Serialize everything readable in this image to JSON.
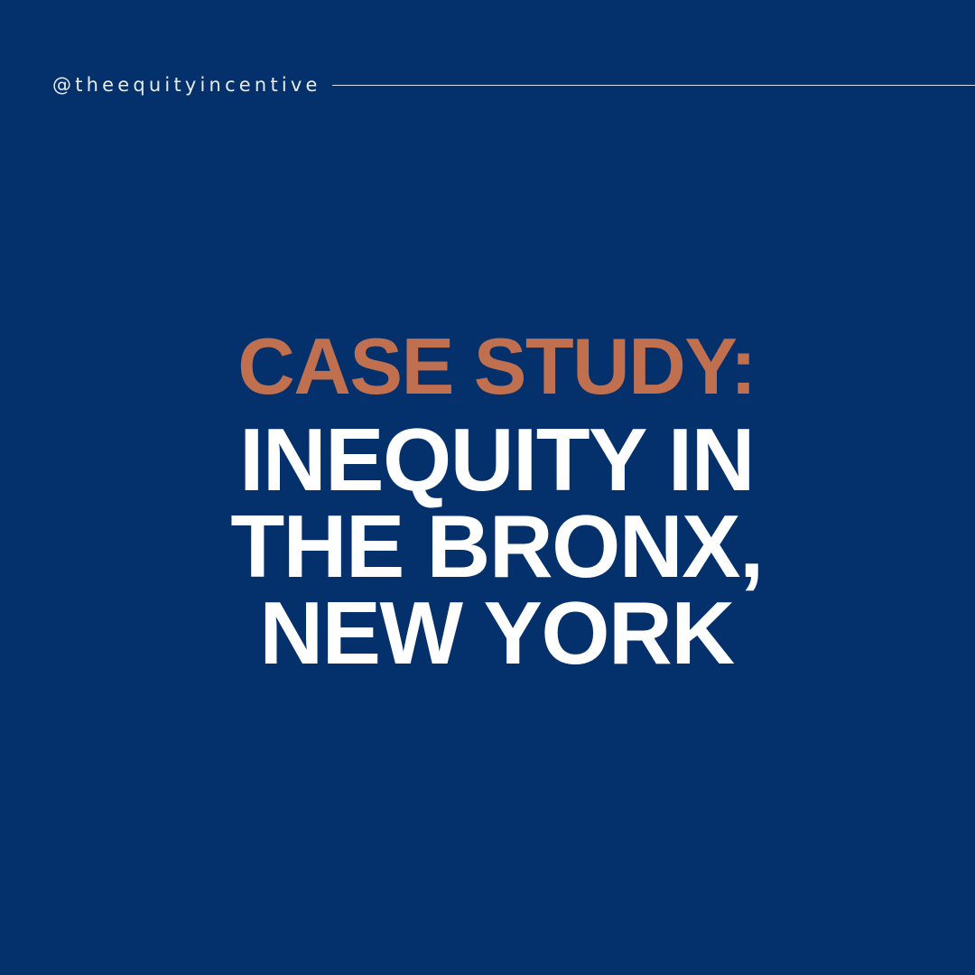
{
  "brand": {
    "handle": "@theequityincentive",
    "background_color": "#04306b",
    "accent_color": "#c1704f",
    "text_color": "#ffffff"
  },
  "headline": {
    "kicker": "CASE STUDY:",
    "title_lines": [
      "INEQUITY IN",
      "THE BRONX,",
      "NEW YORK"
    ]
  }
}
